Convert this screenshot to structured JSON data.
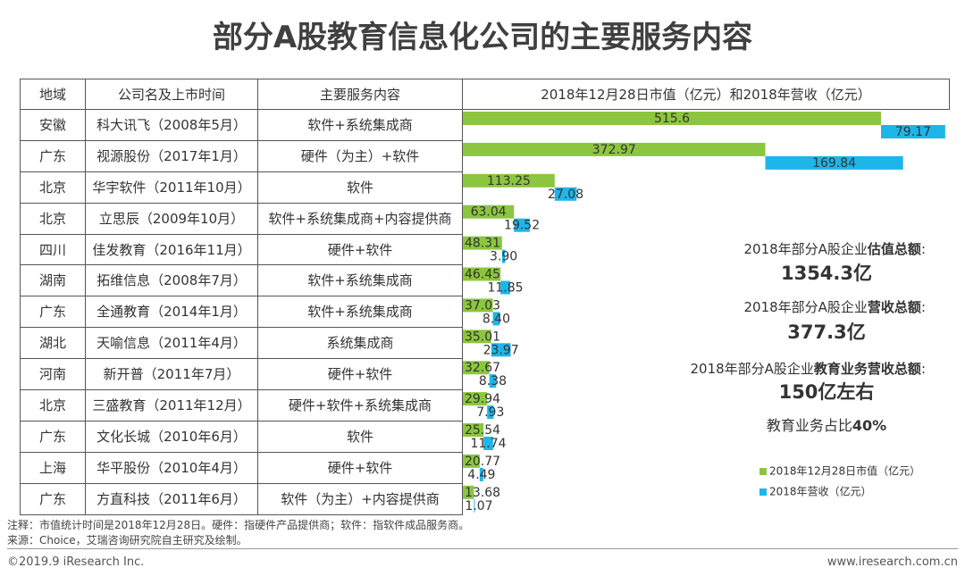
{
  "title": "部分A股教育信息化公司的主要服务内容",
  "table": {
    "headers": [
      "地域",
      "公司名及上市时间",
      "主要服务内容",
      "2018年12月28日市值（亿元）和2018年营收（亿元）"
    ],
    "rows": [
      [
        "安徽",
        "科大讯飞（2008年5月）",
        "软件+系统集成商"
      ],
      [
        "广东",
        "视源股份（2017年1月）",
        "硬件（为主）+软件"
      ],
      [
        "北京",
        "华宇软件（2011年10月）",
        "软件"
      ],
      [
        "北京",
        "立思辰（2009年10月）",
        "软件+系统集成商+内容提供商"
      ],
      [
        "四川",
        "佳发教育（2016年11月）",
        "硬件+软件"
      ],
      [
        "湖南",
        "拓维信息（2008年7月）",
        "软件+系统集成商"
      ],
      [
        "广东",
        "全通教育（2014年1月）",
        "软件+系统集成商"
      ],
      [
        "湖北",
        "天喻信息（2011年4月）",
        "系统集成商"
      ],
      [
        "河南",
        "新开普（2011年7月）",
        "硬件+软件"
      ],
      [
        "北京",
        "三盛教育（2011年12月）",
        "硬件+软件+系统集成商"
      ],
      [
        "广东",
        "文化长城（2010年6月）",
        "软件"
      ],
      [
        "上海",
        "华平股份（2010年4月）",
        "硬件+软件"
      ],
      [
        "广东",
        "方直科技（2011年6月）",
        "软件（为主）+内容提供商"
      ]
    ]
  },
  "chart_data": {
    "type": "bar",
    "orientation": "horizontal",
    "series": [
      {
        "name": "2018年12月28日市值（亿元）",
        "color": "#8cc63f",
        "values": [
          515.6,
          372.97,
          113.25,
          63.04,
          48.31,
          46.45,
          37.03,
          35.01,
          32.67,
          29.94,
          25.54,
          20.77,
          13.68
        ]
      },
      {
        "name": "2018年营收（亿元）",
        "color": "#1eb5e9",
        "values": [
          79.17,
          169.84,
          27.08,
          19.52,
          3.9,
          11.85,
          8.4,
          23.97,
          8.38,
          7.93,
          11.74,
          4.49,
          1.07
        ],
        "value_labels": [
          "79.17",
          "169.84",
          "27.08",
          "19.52",
          "3.90",
          "11.85",
          "8.40",
          "23.97",
          "8.38",
          "7.93",
          "11.74",
          "4.49",
          "1.07"
        ]
      }
    ],
    "annotations": [
      [
        {
          "text": "2018年部分A股企业",
          "bold": false
        },
        {
          "text": "估值总额",
          "bold": true
        },
        {
          "text": ":",
          "bold": false
        }
      ],
      [
        {
          "text": "1354.3亿",
          "bold": true
        }
      ],
      [
        {
          "text": "2018年部分A股企业",
          "bold": false
        },
        {
          "text": "营收总额",
          "bold": true
        },
        {
          "text": ":",
          "bold": false
        }
      ],
      [
        {
          "text": "377.3亿",
          "bold": true
        }
      ],
      [
        {
          "text": "2018年部分A股企业",
          "bold": false
        },
        {
          "text": "教育业务营收总额",
          "bold": true
        },
        {
          "text": ":",
          "bold": false
        }
      ],
      [
        {
          "text": "150亿左右",
          "bold": true
        }
      ],
      [
        {
          "text": "教育业务占比",
          "bold": false
        },
        {
          "text": "40%",
          "bold": true
        }
      ]
    ]
  },
  "notes": [
    "注释：市值统计时间是2018年12月28日。硬件：指硬件产品提供商；软件：指软件成品服务商。",
    "来源：Choice，艾瑞咨询研究院自主研究及绘制。"
  ],
  "footer": {
    "left": "©2019.9 iResearch Inc.",
    "right": "www.iresearch.com.cn"
  }
}
